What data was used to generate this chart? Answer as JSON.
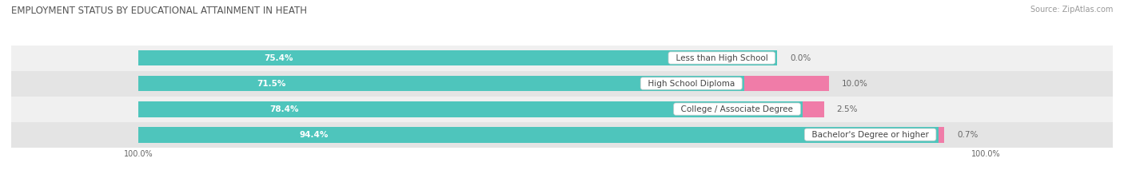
{
  "title": "EMPLOYMENT STATUS BY EDUCATIONAL ATTAINMENT IN HEATH",
  "source": "Source: ZipAtlas.com",
  "categories": [
    "Less than High School",
    "High School Diploma",
    "College / Associate Degree",
    "Bachelor's Degree or higher"
  ],
  "in_labor_force": [
    75.4,
    71.5,
    78.4,
    94.4
  ],
  "unemployed": [
    0.0,
    10.0,
    2.5,
    0.7
  ],
  "labor_force_color": "#4EC5BC",
  "unemployed_color": "#F07CA8",
  "row_bg_even": "#F0F0F0",
  "row_bg_odd": "#E4E4E4",
  "title_color": "#555555",
  "source_color": "#999999",
  "label_color": "#FFFFFF",
  "cat_label_color": "#444444",
  "pct_label_color": "#666666",
  "axis_label_color": "#666666",
  "title_fontsize": 8.5,
  "source_fontsize": 7,
  "bar_label_fontsize": 7.5,
  "category_fontsize": 7.5,
  "legend_fontsize": 7.5,
  "axis_label_fontsize": 7,
  "x_left_label": "100.0%",
  "x_right_label": "100.0%",
  "bar_height": 0.62,
  "xlim_left": -15,
  "xlim_right": 115,
  "total_width": 100
}
